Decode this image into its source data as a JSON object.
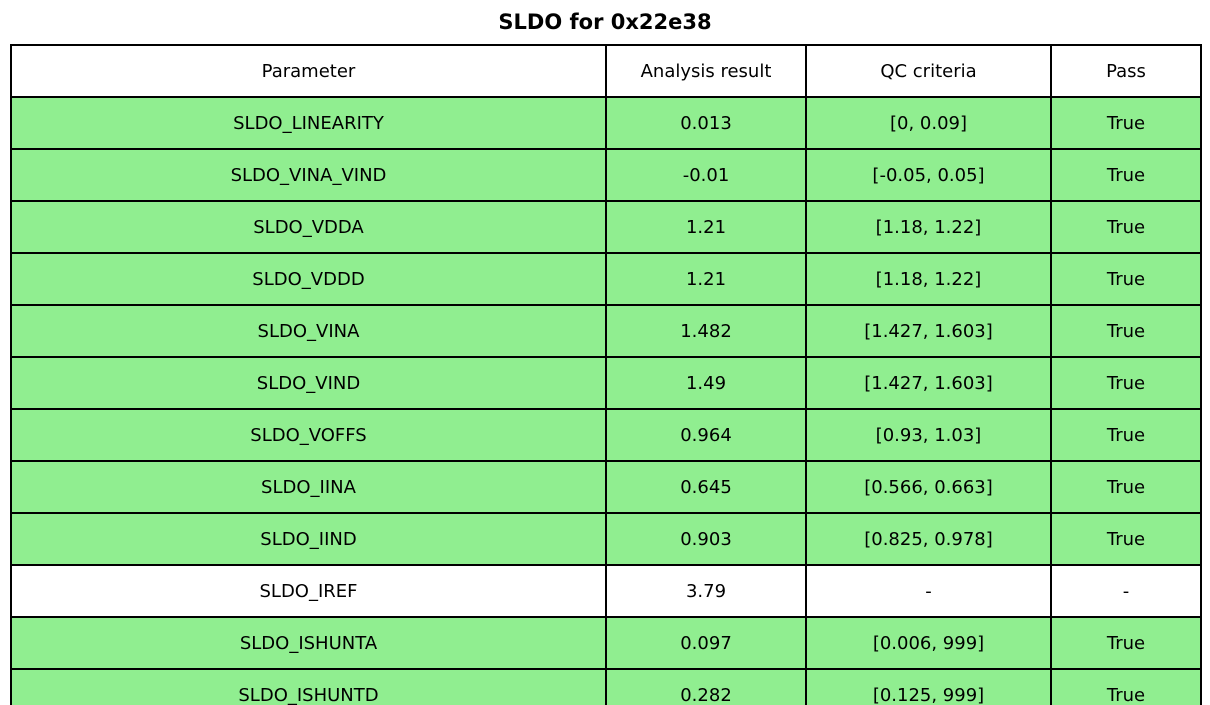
{
  "title": "SLDO for 0x22e38",
  "chart_data": {
    "type": "table",
    "title": "SLDO for 0x22e38",
    "columns": [
      "Parameter",
      "Analysis result",
      "QC criteria",
      "Pass"
    ],
    "rows": [
      [
        "SLDO_LINEARITY",
        "0.013",
        "[0, 0.09]",
        "True"
      ],
      [
        "SLDO_VINA_VIND",
        "-0.01",
        "[-0.05, 0.05]",
        "True"
      ],
      [
        "SLDO_VDDA",
        "1.21",
        "[1.18, 1.22]",
        "True"
      ],
      [
        "SLDO_VDDD",
        "1.21",
        "[1.18, 1.22]",
        "True"
      ],
      [
        "SLDO_VINA",
        "1.482",
        "[1.427, 1.603]",
        "True"
      ],
      [
        "SLDO_VIND",
        "1.49",
        "[1.427, 1.603]",
        "True"
      ],
      [
        "SLDO_VOFFS",
        "0.964",
        "[0.93, 1.03]",
        "True"
      ],
      [
        "SLDO_IINA",
        "0.645",
        "[0.566, 0.663]",
        "True"
      ],
      [
        "SLDO_IIND",
        "0.903",
        "[0.825, 0.978]",
        "True"
      ],
      [
        "SLDO_IREF",
        "3.79",
        "-",
        "-"
      ],
      [
        "SLDO_ISHUNTA",
        "0.097",
        "[0.006, 999]",
        "True"
      ],
      [
        "SLDO_ISHUNTD",
        "0.282",
        "[0.125, 999]",
        "True"
      ]
    ],
    "row_colors": [
      "green",
      "green",
      "green",
      "green",
      "green",
      "green",
      "green",
      "green",
      "green",
      "white",
      "green",
      "green"
    ],
    "layout": {
      "header_background": "#ffffff",
      "grid": "all-borders",
      "text_align": "center"
    }
  },
  "colors": {
    "pass_green": "#90ee90",
    "neutral_white": "#ffffff",
    "border_black": "#000000",
    "text_black": "#000000"
  }
}
